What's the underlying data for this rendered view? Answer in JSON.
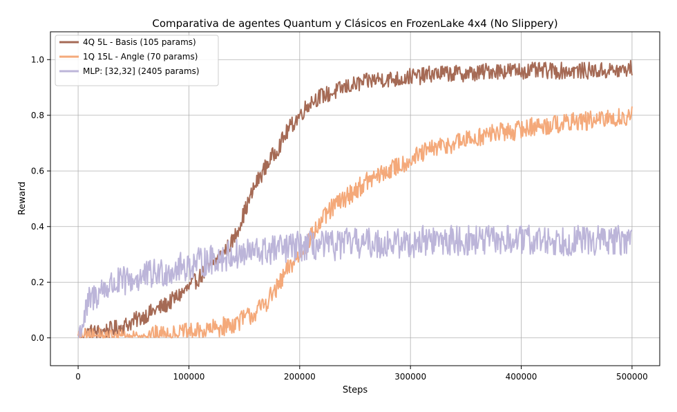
{
  "chart_data": {
    "type": "line",
    "title": "Comparativa de agentes Quantum y Clásicos en FrozenLake 4x4 (No Slippery)",
    "xlabel": "Steps",
    "ylabel": "Reward",
    "xlim": [
      -25000,
      525000
    ],
    "ylim": [
      -0.1,
      1.1
    ],
    "x_ticks": [
      0,
      100000,
      200000,
      300000,
      400000,
      500000
    ],
    "y_ticks": [
      0.0,
      0.2,
      0.4,
      0.6,
      0.8,
      1.0
    ],
    "x_tick_labels": [
      "0",
      "100000",
      "200000",
      "300000",
      "400000",
      "500000"
    ],
    "y_tick_labels": [
      "0.0",
      "0.2",
      "0.4",
      "0.6",
      "0.8",
      "1.0"
    ],
    "grid": true,
    "legend_position": "top-left",
    "series": [
      {
        "name": "4Q  5L - Basis (105 params)",
        "color": "#a56a55",
        "x": [
          0,
          10000,
          20000,
          30000,
          40000,
          50000,
          60000,
          70000,
          80000,
          90000,
          100000,
          110000,
          120000,
          130000,
          140000,
          150000,
          160000,
          170000,
          180000,
          190000,
          200000,
          210000,
          220000,
          230000,
          240000,
          250000,
          260000,
          270000,
          280000,
          290000,
          300000,
          310000,
          320000,
          330000,
          340000,
          350000,
          360000,
          370000,
          380000,
          390000,
          400000,
          410000,
          420000,
          430000,
          440000,
          450000,
          460000,
          470000,
          480000,
          490000,
          500000
        ],
        "y": [
          0.0,
          0.02,
          0.02,
          0.03,
          0.04,
          0.06,
          0.08,
          0.1,
          0.12,
          0.15,
          0.18,
          0.22,
          0.26,
          0.3,
          0.35,
          0.45,
          0.55,
          0.62,
          0.68,
          0.75,
          0.8,
          0.85,
          0.87,
          0.88,
          0.9,
          0.91,
          0.92,
          0.93,
          0.93,
          0.93,
          0.94,
          0.94,
          0.95,
          0.95,
          0.95,
          0.95,
          0.95,
          0.96,
          0.96,
          0.96,
          0.96,
          0.96,
          0.96,
          0.96,
          0.96,
          0.96,
          0.96,
          0.96,
          0.96,
          0.96,
          0.97
        ]
      },
      {
        "name": "1Q 15L - Angle (70 params)",
        "color": "#f4a97a",
        "x": [
          0,
          10000,
          20000,
          30000,
          40000,
          50000,
          60000,
          70000,
          80000,
          90000,
          100000,
          110000,
          120000,
          130000,
          140000,
          150000,
          160000,
          170000,
          180000,
          190000,
          200000,
          210000,
          220000,
          230000,
          240000,
          250000,
          260000,
          270000,
          280000,
          290000,
          300000,
          310000,
          320000,
          330000,
          340000,
          350000,
          360000,
          370000,
          380000,
          390000,
          400000,
          410000,
          420000,
          430000,
          440000,
          450000,
          460000,
          470000,
          480000,
          490000,
          500000
        ],
        "y": [
          0.0,
          0.0,
          0.0,
          0.0,
          0.0,
          0.0,
          0.0,
          0.01,
          0.01,
          0.01,
          0.02,
          0.02,
          0.03,
          0.04,
          0.05,
          0.07,
          0.09,
          0.13,
          0.18,
          0.25,
          0.3,
          0.36,
          0.42,
          0.47,
          0.5,
          0.53,
          0.56,
          0.58,
          0.6,
          0.62,
          0.64,
          0.66,
          0.68,
          0.69,
          0.7,
          0.71,
          0.72,
          0.73,
          0.74,
          0.74,
          0.75,
          0.76,
          0.76,
          0.77,
          0.77,
          0.78,
          0.78,
          0.78,
          0.79,
          0.79,
          0.8
        ]
      },
      {
        "name": "MLP: [32,32] (2405 params)",
        "color": "#bcb5d9",
        "x": [
          0,
          10000,
          20000,
          30000,
          40000,
          50000,
          60000,
          70000,
          80000,
          90000,
          100000,
          110000,
          120000,
          130000,
          140000,
          150000,
          160000,
          170000,
          180000,
          190000,
          200000,
          210000,
          220000,
          230000,
          240000,
          250000,
          260000,
          270000,
          280000,
          290000,
          300000,
          310000,
          320000,
          330000,
          340000,
          350000,
          360000,
          370000,
          380000,
          390000,
          400000,
          410000,
          420000,
          430000,
          440000,
          450000,
          460000,
          470000,
          480000,
          490000,
          500000
        ],
        "y": [
          0.0,
          0.13,
          0.17,
          0.19,
          0.2,
          0.21,
          0.22,
          0.23,
          0.24,
          0.25,
          0.26,
          0.27,
          0.28,
          0.29,
          0.3,
          0.3,
          0.31,
          0.31,
          0.32,
          0.32,
          0.33,
          0.33,
          0.33,
          0.33,
          0.34,
          0.34,
          0.34,
          0.34,
          0.34,
          0.34,
          0.34,
          0.35,
          0.35,
          0.35,
          0.35,
          0.35,
          0.35,
          0.35,
          0.35,
          0.35,
          0.35,
          0.35,
          0.35,
          0.35,
          0.35,
          0.35,
          0.35,
          0.35,
          0.35,
          0.35,
          0.35
        ]
      }
    ]
  }
}
